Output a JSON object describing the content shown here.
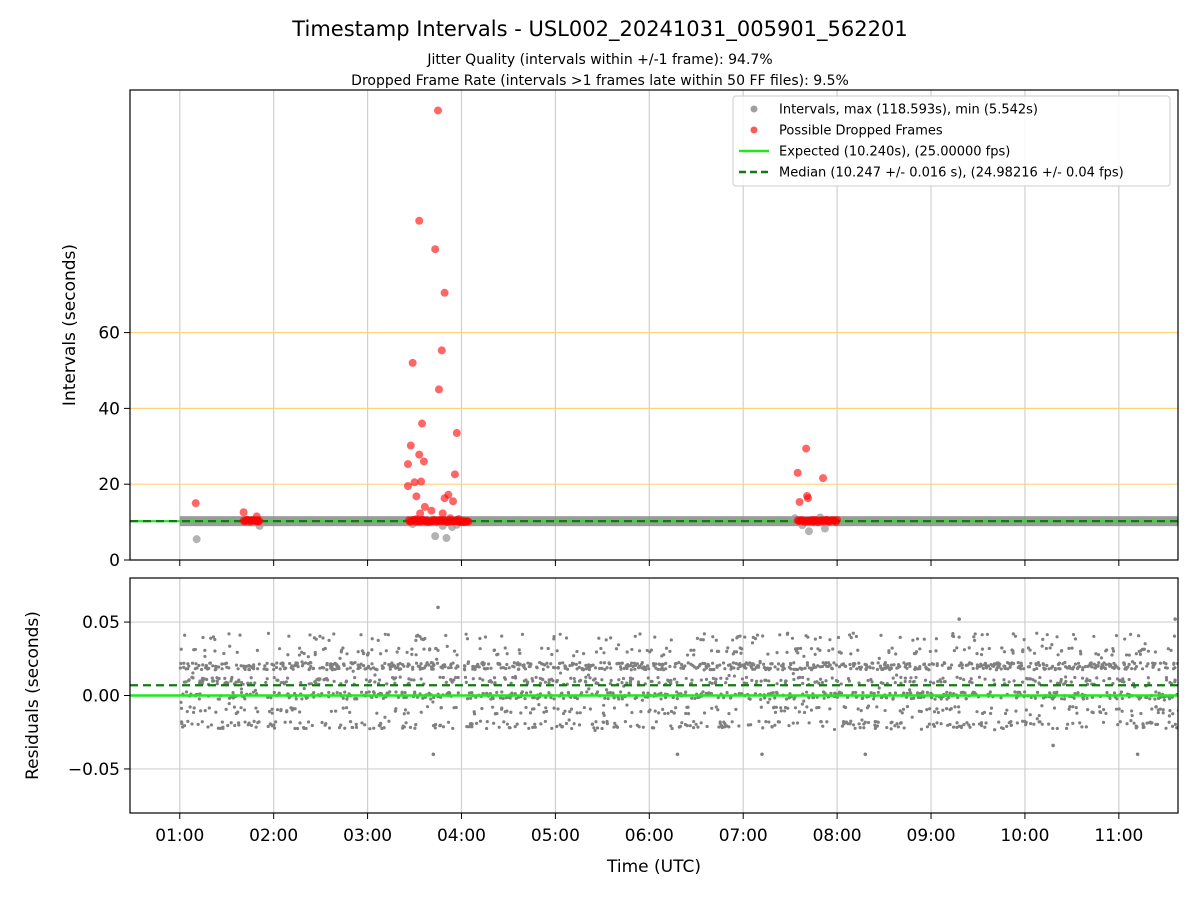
{
  "figure": {
    "title": "Timestamp Intervals - USL002_20241031_005901_562201",
    "subtitle_1": "Jitter Quality (intervals within +/-1 frame): 94.7%",
    "subtitle_2": "Dropped Frame Rate (intervals >1 frames late within 50 FF files): 9.5%"
  },
  "chart_data": [
    {
      "type": "scatter",
      "panel": "top",
      "ylabel": "Intervals (seconds)",
      "xlim_hours": [
        0.47,
        11.63
      ],
      "ylim": [
        0,
        124
      ],
      "x_ticks": [
        1,
        2,
        3,
        4,
        5,
        6,
        7,
        8,
        9,
        10,
        11
      ],
      "x_tick_labels": [
        "01:00",
        "02:00",
        "03:00",
        "04:00",
        "05:00",
        "06:00",
        "07:00",
        "08:00",
        "09:00",
        "10:00",
        "11:00"
      ],
      "y_ticks": [
        0,
        20,
        40,
        60
      ],
      "y_tick_labels": [
        "0",
        "20",
        "40",
        "60"
      ],
      "reference_lines_y": [
        20,
        40,
        60
      ],
      "reference_line_color": "#ffd37a",
      "grid": "x",
      "legend_position": "top-right",
      "legend": [
        {
          "label": "Intervals, max (118.593s), min (5.542s)",
          "kind": "marker",
          "color": "#a0a0a0"
        },
        {
          "label": "Possible Dropped Frames",
          "kind": "marker",
          "color": "#ff5a5a"
        },
        {
          "label": "Expected (10.240s), (25.00000 fps)",
          "kind": "line",
          "color": "#1ee81e"
        },
        {
          "label": "Median (10.247 +/- 0.016 s), (24.98216 +/- 0.04 fps)",
          "kind": "dashed",
          "color": "#127a12"
        }
      ],
      "expected_value": 10.24,
      "median_value": 10.247,
      "normal_band_segments_hours": [
        [
          1.0,
          11.65
        ]
      ],
      "intervals_scatter": [
        [
          1.18,
          5.5
        ],
        [
          1.85,
          9.0
        ],
        [
          3.48,
          9.5
        ],
        [
          3.72,
          6.3
        ],
        [
          3.8,
          9.0
        ],
        [
          3.84,
          5.8
        ],
        [
          3.9,
          8.7
        ],
        [
          3.95,
          9.3
        ],
        [
          7.55,
          11.0
        ],
        [
          7.63,
          9.2
        ],
        [
          7.7,
          7.6
        ],
        [
          7.82,
          11.2
        ],
        [
          7.87,
          8.3
        ]
      ],
      "dropped_frames": [
        [
          1.17,
          15.0
        ],
        [
          1.68,
          12.6
        ],
        [
          1.72,
          10.5
        ],
        [
          1.82,
          11.5
        ],
        [
          1.83,
          10.2
        ],
        [
          3.43,
          25.3
        ],
        [
          3.43,
          19.5
        ],
        [
          3.46,
          30.2
        ],
        [
          3.48,
          52.0
        ],
        [
          3.5,
          20.5
        ],
        [
          3.52,
          16.8
        ],
        [
          3.55,
          27.8
        ],
        [
          3.56,
          12.3
        ],
        [
          3.58,
          36.0
        ],
        [
          3.6,
          26.0
        ],
        [
          3.57,
          20.7
        ],
        [
          3.52,
          10.8
        ],
        [
          3.61,
          14.0
        ],
        [
          3.63,
          10.2
        ],
        [
          3.55,
          89.5
        ],
        [
          3.72,
          82.0
        ],
        [
          3.75,
          118.6
        ],
        [
          3.76,
          45.0
        ],
        [
          3.79,
          55.3
        ],
        [
          3.8,
          12.3
        ],
        [
          3.82,
          70.5
        ],
        [
          3.82,
          16.3
        ],
        [
          3.86,
          17.2
        ],
        [
          3.88,
          11.0
        ],
        [
          3.91,
          15.5
        ],
        [
          3.93,
          22.6
        ],
        [
          3.95,
          33.5
        ],
        [
          3.97,
          10.8
        ],
        [
          3.68,
          13.0
        ],
        [
          3.44,
          10.5
        ],
        [
          7.58,
          23.0
        ],
        [
          7.6,
          15.3
        ],
        [
          7.67,
          29.4
        ],
        [
          7.68,
          16.9
        ],
        [
          7.69,
          16.3
        ],
        [
          7.85,
          21.6
        ],
        [
          7.62,
          10.4
        ],
        [
          7.75,
          10.2
        ]
      ],
      "dropped_frame_runs_hours": [
        [
          1.68,
          1.85
        ],
        [
          3.45,
          4.08
        ],
        [
          7.58,
          8.0
        ]
      ]
    },
    {
      "type": "scatter",
      "panel": "bottom",
      "xlabel": "Time (UTC)",
      "ylabel": "Residuals (seconds)",
      "xlim_hours": [
        0.47,
        11.63
      ],
      "ylim": [
        -0.08,
        0.08
      ],
      "y_ticks": [
        -0.05,
        0.0,
        0.05
      ],
      "y_tick_labels": [
        "−0.05",
        "0.00",
        "0.05"
      ],
      "grid": "both",
      "expected_residual": 0.0,
      "median_residual": 0.007,
      "point_color": "#808080",
      "residual_levels": [
        0.02,
        0.0,
        -0.02,
        0.01,
        0.03,
        -0.01,
        0.04
      ],
      "residual_level_weights": [
        0.3,
        0.22,
        0.12,
        0.14,
        0.07,
        0.07,
        0.04
      ],
      "data_gaps_hours": [
        [
          1.85,
          1.9
        ],
        [
          3.97,
          4.02
        ]
      ],
      "residual_outliers": [
        [
          3.75,
          0.06
        ],
        [
          3.7,
          -0.04
        ],
        [
          6.3,
          -0.04
        ],
        [
          7.2,
          -0.04
        ],
        [
          8.3,
          -0.04
        ],
        [
          9.3,
          0.052
        ],
        [
          10.3,
          -0.034
        ],
        [
          11.2,
          -0.04
        ],
        [
          11.6,
          0.052
        ]
      ],
      "max_residual": 0.06,
      "min_residual": -0.042
    }
  ]
}
